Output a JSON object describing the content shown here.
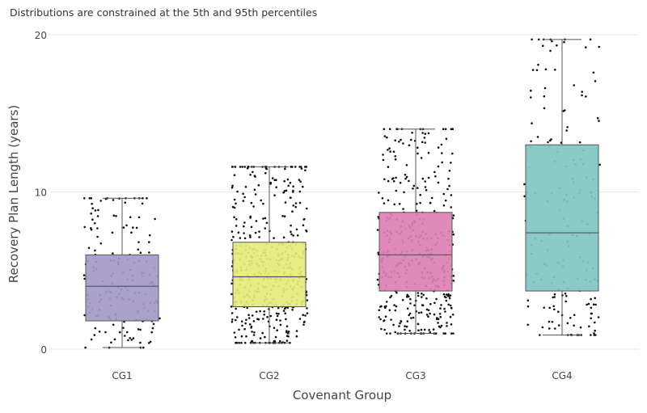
{
  "chart_data": {
    "type": "box",
    "subtitle": "Distributions are constrained at the 5th and 95th percentiles",
    "xlabel": "Covenant Group",
    "ylabel": "Recovery Plan Length (years)",
    "ylim": [
      0,
      20
    ],
    "yticks": [
      0,
      10,
      20
    ],
    "grid": true,
    "points": "all (jittered)",
    "categories": [
      "CG1",
      "CG2",
      "CG3",
      "CG4"
    ],
    "boxes": [
      {
        "name": "CG1",
        "color": "#a49ac7",
        "whisker_low": 0.1,
        "q1": 1.8,
        "median": 4.0,
        "q3": 6.0,
        "whisker_high": 9.6,
        "n_points": 170
      },
      {
        "name": "CG2",
        "color": "#e6ea7a",
        "whisker_low": 0.4,
        "q1": 2.7,
        "median": 4.6,
        "q3": 6.8,
        "whisker_high": 11.6,
        "n_points": 480
      },
      {
        "name": "CG3",
        "color": "#dd7fb4",
        "whisker_low": 1.0,
        "q1": 3.7,
        "median": 6.0,
        "q3": 8.7,
        "whisker_high": 14.0,
        "n_points": 400
      },
      {
        "name": "CG4",
        "color": "#80c6c4",
        "whisker_low": 0.9,
        "q1": 3.7,
        "median": 7.4,
        "q3": 13.0,
        "whisker_high": 19.7,
        "n_points": 170
      }
    ]
  }
}
